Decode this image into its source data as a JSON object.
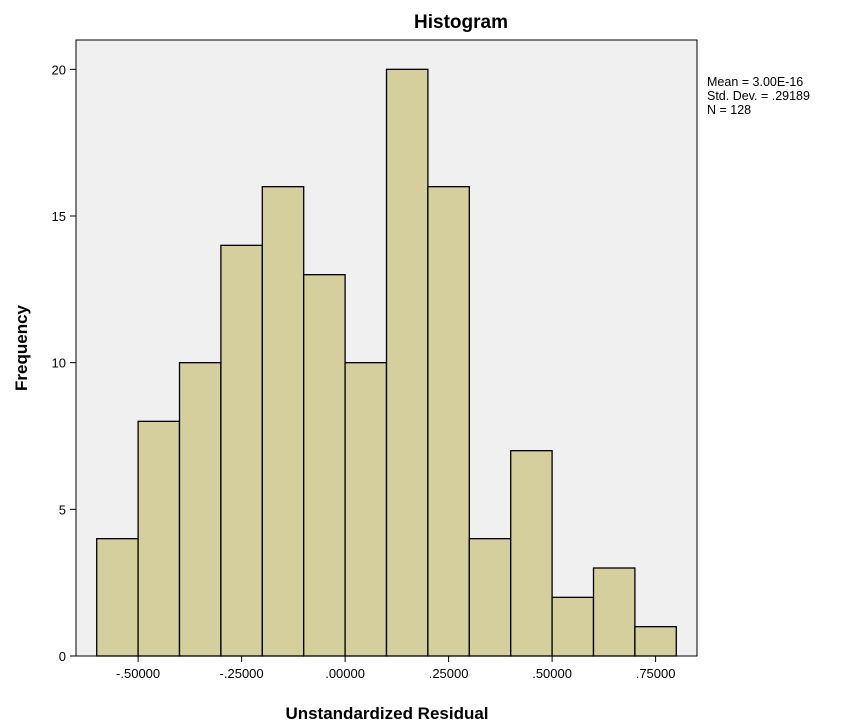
{
  "chart_data": {
    "type": "bar",
    "title": "Histogram",
    "xlabel": "Unstandardized Residual",
    "ylabel": "Frequency",
    "bin_width": 0.1,
    "bins_start": [
      -0.6,
      -0.5,
      -0.4,
      -0.3,
      -0.2,
      -0.1,
      0.0,
      0.1,
      0.2,
      0.3,
      0.4,
      0.5,
      0.6,
      0.7
    ],
    "values": [
      4,
      8,
      10,
      14,
      16,
      13,
      10,
      20,
      16,
      4,
      7,
      2,
      3,
      1
    ],
    "xlim": [
      -0.65,
      0.85
    ],
    "ylim": [
      0,
      21
    ],
    "x_ticks": [
      {
        "value": -0.5,
        "label": "-.50000"
      },
      {
        "value": -0.25,
        "label": "-.25000"
      },
      {
        "value": 0.0,
        "label": ".00000"
      },
      {
        "value": 0.25,
        "label": ".25000"
      },
      {
        "value": 0.5,
        "label": ".50000"
      },
      {
        "value": 0.75,
        "label": ".75000"
      }
    ],
    "y_ticks": [
      {
        "value": 0,
        "label": "0"
      },
      {
        "value": 5,
        "label": "5"
      },
      {
        "value": 10,
        "label": "10"
      },
      {
        "value": 15,
        "label": "15"
      },
      {
        "value": 20,
        "label": "20"
      }
    ],
    "stats": {
      "mean": "Mean = 3.00E-16",
      "std": "Std. Dev. = .29189",
      "n": "N = 128"
    },
    "grid": false,
    "legend": "none",
    "colors": {
      "bar_fill": "#d4cf9c",
      "bar_stroke": "#000000",
      "plot_bg": "#f0f0f0",
      "frame": "#000000"
    }
  }
}
